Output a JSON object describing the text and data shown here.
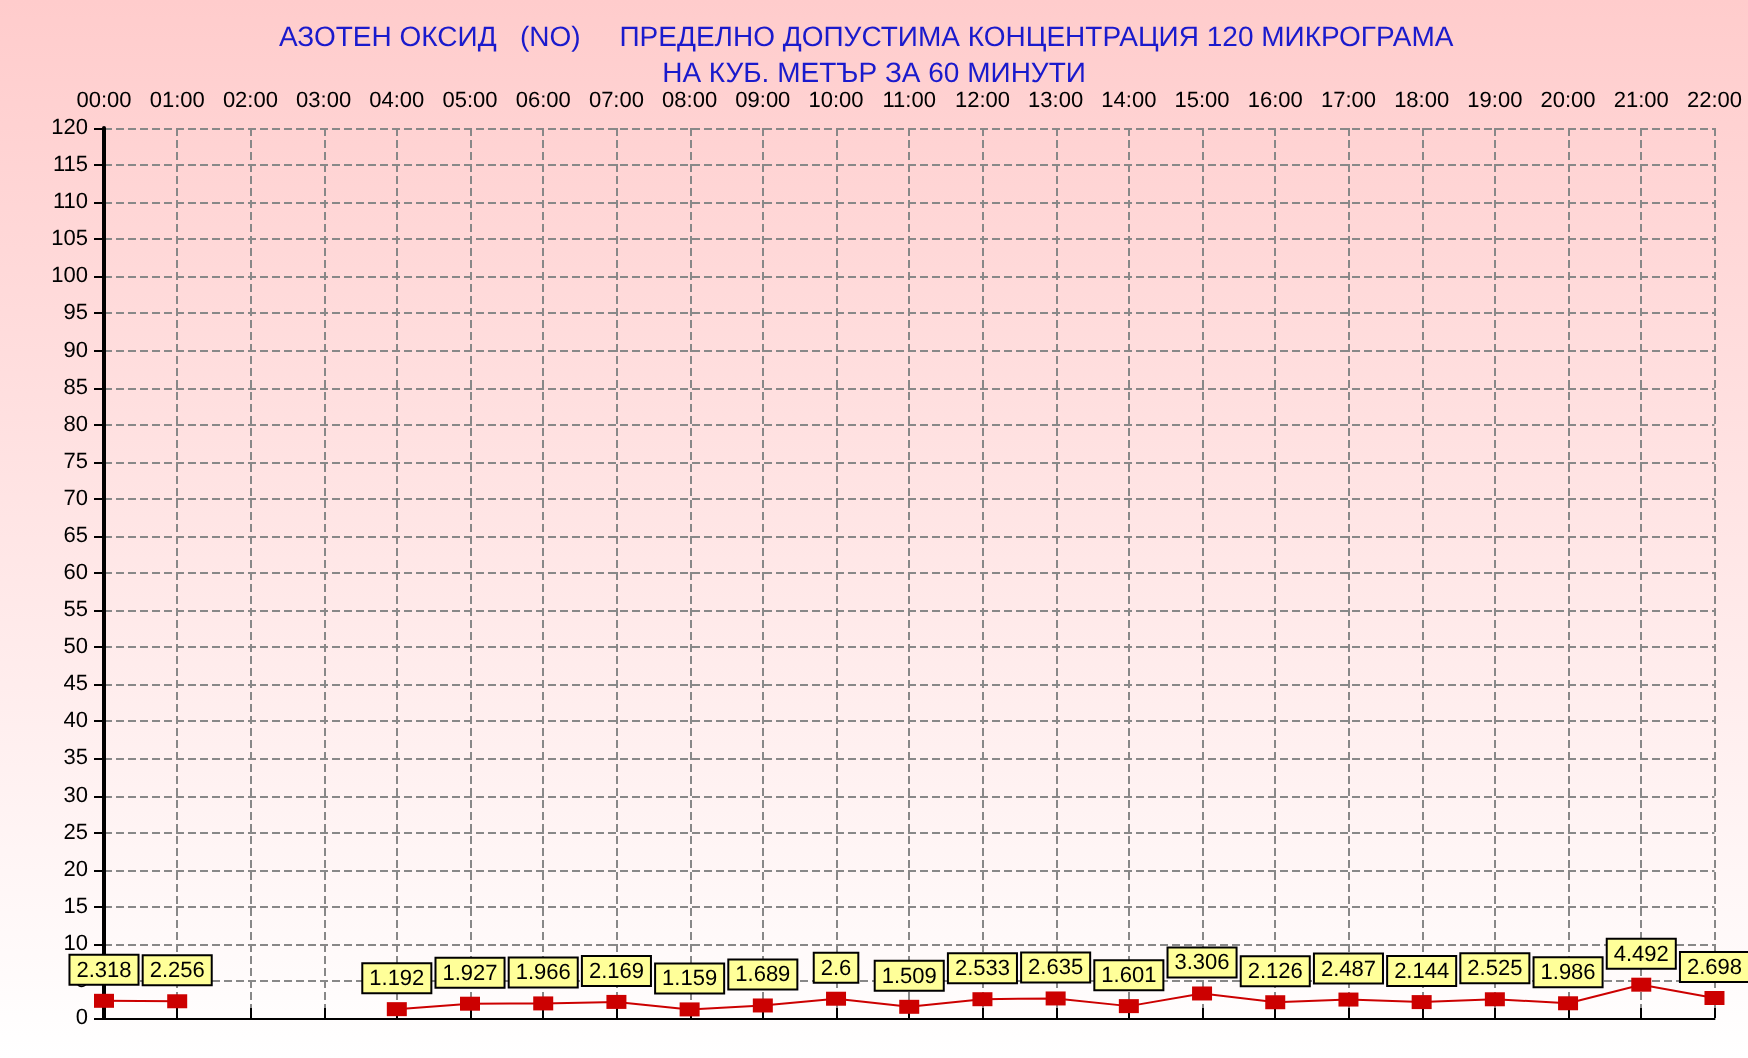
{
  "chart_data": {
    "type": "line",
    "title": "АЗОТЕН ОКСИД   (NO)     ПРЕДЕЛНО ДОПУСТИМА КОНЦЕНТРАЦИЯ 120 МИКРОГРАМА  НА КУБ. МЕТЪР ЗА 60 МИНУТИ",
    "categories": [
      "00:00",
      "01:00",
      "02:00",
      "03:00",
      "04:00",
      "05:00",
      "06:00",
      "07:00",
      "08:00",
      "09:00",
      "10:00",
      "11:00",
      "12:00",
      "13:00",
      "14:00",
      "15:00",
      "16:00",
      "17:00",
      "18:00",
      "19:00",
      "20:00",
      "21:00",
      "22:00"
    ],
    "series": [
      {
        "color": "#cc0000",
        "values": [
          2.318,
          2.256,
          null,
          null,
          1.192,
          1.927,
          1.966,
          2.169,
          1.159,
          1.689,
          2.6,
          1.509,
          2.533,
          2.635,
          1.601,
          3.306,
          2.126,
          2.487,
          2.144,
          2.525,
          1.986,
          4.492,
          2.698
        ]
      }
    ],
    "ylim": [
      0,
      120
    ],
    "yticks": [
      0,
      5,
      10,
      15,
      20,
      25,
      30,
      35,
      40,
      45,
      50,
      55,
      60,
      65,
      70,
      75,
      80,
      85,
      90,
      95,
      100,
      105,
      110,
      115,
      120
    ],
    "grid": true,
    "marker": "square",
    "line_style": "solid",
    "data_labels": true
  }
}
